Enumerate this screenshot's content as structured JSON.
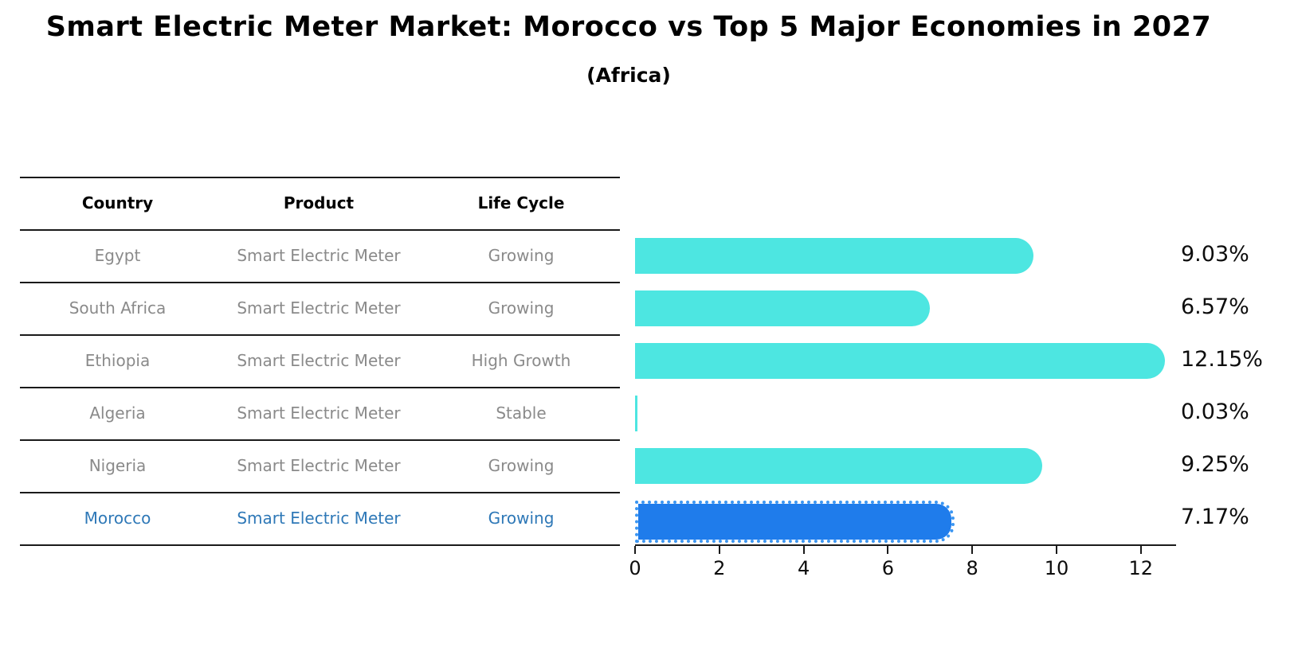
{
  "title": "Smart Electric Meter Market: Morocco vs Top 5 Major Economies in 2027",
  "subtitle": "(Africa)",
  "table": {
    "headers": [
      "Country",
      "Product",
      "Life Cycle"
    ],
    "rows": [
      {
        "country": "Egypt",
        "product": "Smart Electric Meter",
        "life_cycle": "Growing",
        "highlight": false
      },
      {
        "country": "South Africa",
        "product": "Smart Electric Meter",
        "life_cycle": "Growing",
        "highlight": false
      },
      {
        "country": "Ethiopia",
        "product": "Smart Electric Meter",
        "life_cycle": "High Growth",
        "highlight": false
      },
      {
        "country": "Algeria",
        "product": "Smart Electric Meter",
        "life_cycle": "Stable",
        "highlight": false
      },
      {
        "country": "Nigeria",
        "product": "Smart Electric Meter",
        "life_cycle": "Growing",
        "highlight": false
      },
      {
        "country": "Morocco",
        "product": "Smart Electric Meter",
        "life_cycle": "Growing",
        "highlight": true
      }
    ]
  },
  "chart_data": {
    "type": "bar",
    "orientation": "horizontal",
    "title": "Smart Electric Meter Market: Morocco vs Top 5 Major Economies in 2027",
    "subtitle": "(Africa)",
    "categories": [
      "Egypt",
      "South Africa",
      "Ethiopia",
      "Algeria",
      "Nigeria",
      "Morocco"
    ],
    "values": [
      9.03,
      6.57,
      12.15,
      0.03,
      9.25,
      7.17
    ],
    "value_labels": [
      "9.03%",
      "6.57%",
      "12.15%",
      "0.03%",
      "9.25%",
      "7.17%"
    ],
    "highlight_index": 5,
    "xlabel": "",
    "ylabel": "",
    "xlim": [
      0,
      12.8
    ],
    "xticks": [
      0,
      2,
      4,
      6,
      8,
      10,
      12
    ],
    "grid": false,
    "legend": "none",
    "bar_color": "#4DE6E1",
    "highlight_bar_color": "#1F7CEB",
    "highlight_text_color": "#2e78b7",
    "table_text_color": "#8a8a8a"
  }
}
